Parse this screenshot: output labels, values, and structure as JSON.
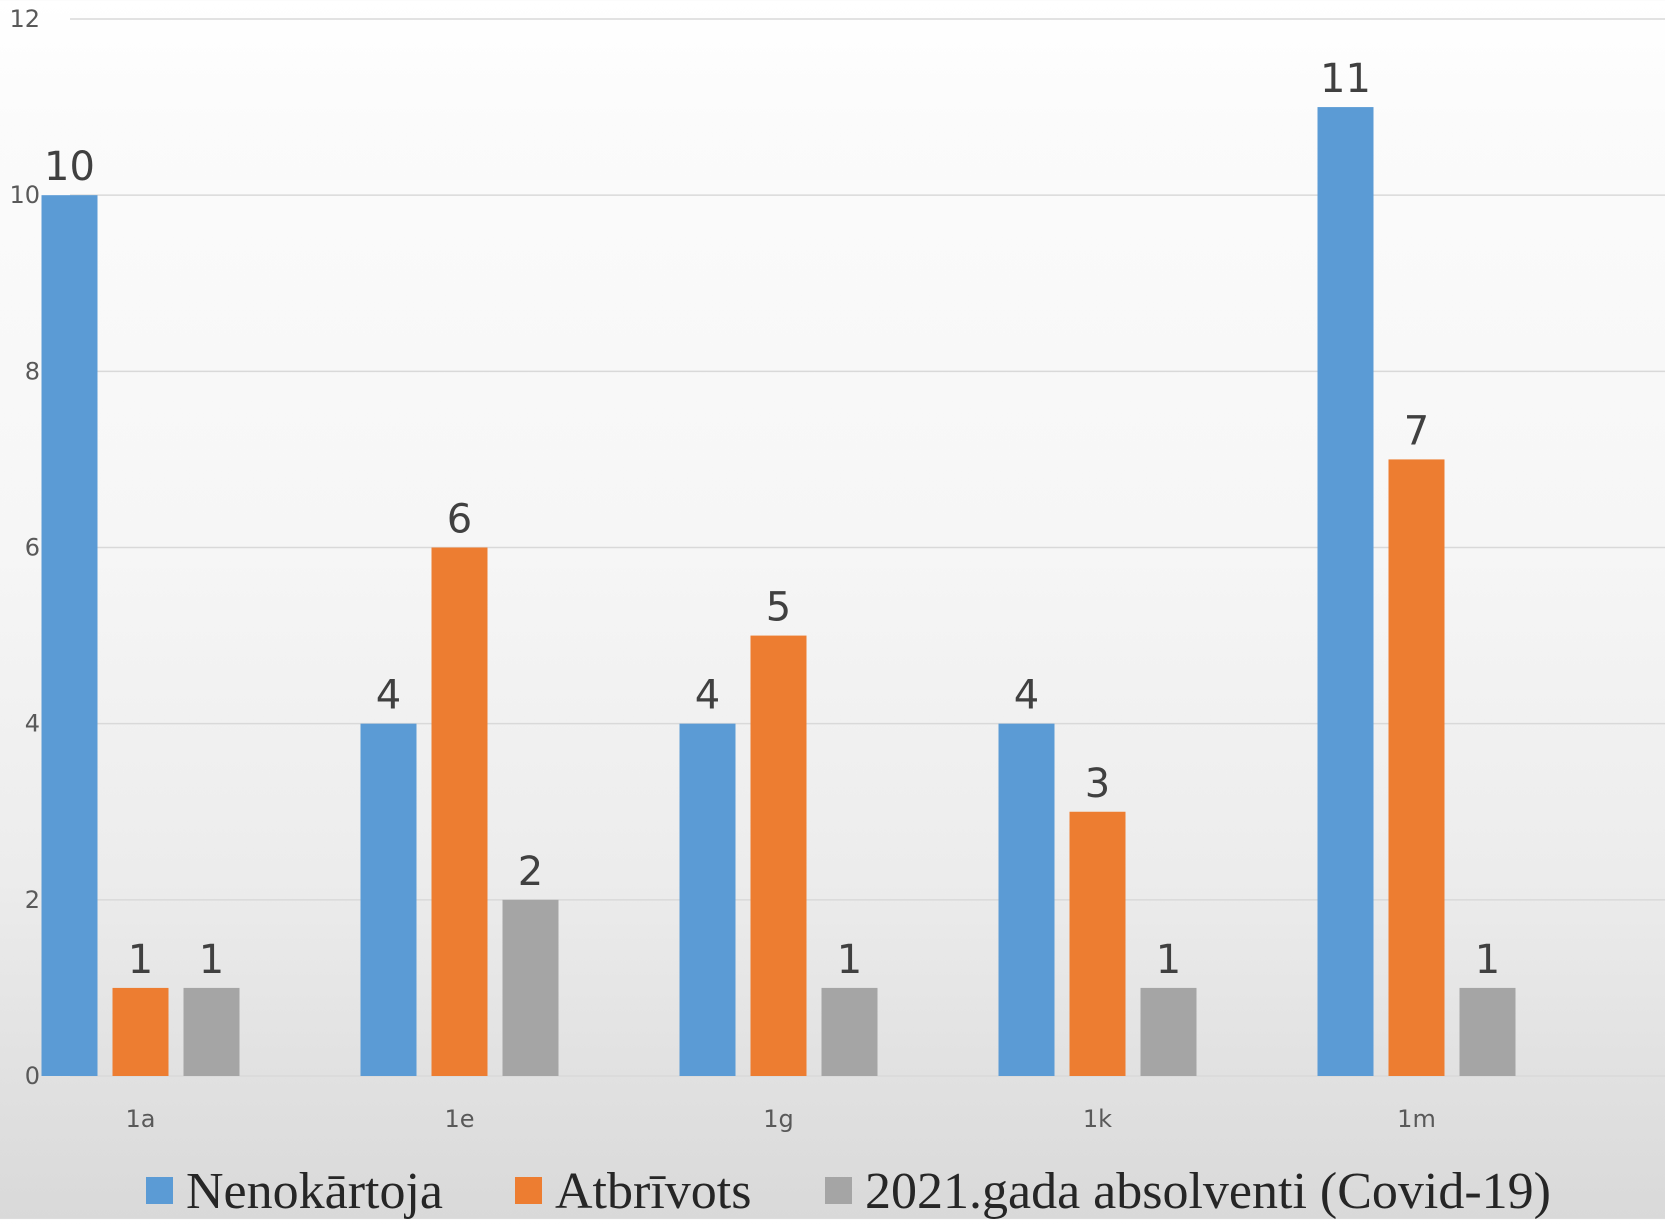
{
  "chart_data": {
    "type": "bar",
    "categories": [
      "1a",
      "1e",
      "1g",
      "1k",
      "1m"
    ],
    "series": [
      {
        "name": "Nenokārtoja",
        "values": [
          10,
          4,
          4,
          4,
          11
        ],
        "color": "#5B9BD5"
      },
      {
        "name": "Atbrīvots",
        "values": [
          1,
          6,
          5,
          3,
          7
        ],
        "color": "#ED7D31"
      },
      {
        "name": "2021.gada absolventi (Covid-19)",
        "values": [
          1,
          2,
          1,
          1,
          1
        ],
        "color": "#A5A5A5"
      }
    ],
    "ylim": [
      0,
      12
    ],
    "yticks": [
      0,
      2,
      4,
      6,
      8,
      10,
      12
    ],
    "grid": true,
    "legend_position": "bottom",
    "data_labels": true
  }
}
